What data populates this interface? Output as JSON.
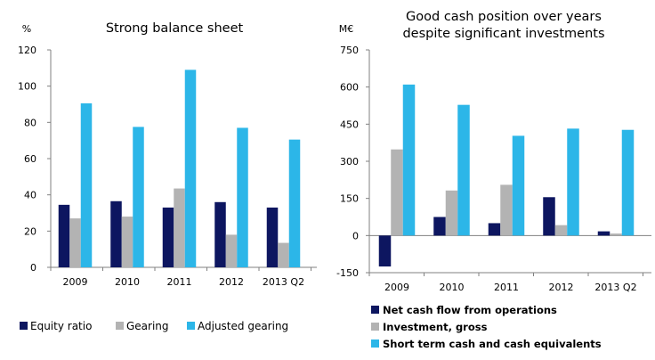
{
  "colors": {
    "navy": "#0d1660",
    "gray": "#b3b3b3",
    "cyan": "#2cb6e8"
  },
  "chart_data": [
    {
      "type": "bar",
      "title": "Strong balance sheet",
      "ylabel": "%",
      "ylim": [
        0,
        120
      ],
      "yticks": [
        0,
        20,
        40,
        60,
        80,
        100,
        120
      ],
      "categories": [
        "2009",
        "2010",
        "2011",
        "2012",
        "2013 Q2"
      ],
      "series": [
        {
          "name": "Equity ratio",
          "color": "#0d1660",
          "values": [
            34.5,
            36.5,
            33,
            36,
            33
          ]
        },
        {
          "name": "Gearing",
          "color": "#b3b3b3",
          "values": [
            27,
            28,
            43.5,
            18,
            13.5
          ]
        },
        {
          "name": "Adjusted gearing",
          "color": "#2cb6e8",
          "values": [
            90.5,
            77.5,
            109,
            77,
            70.5
          ]
        }
      ]
    },
    {
      "type": "bar",
      "title_lines": [
        "Good cash position over years",
        "despite significant investments"
      ],
      "ylabel": "M€",
      "ylim": [
        -150,
        750
      ],
      "yticks": [
        -150,
        0,
        150,
        300,
        450,
        600,
        750
      ],
      "categories": [
        "2009",
        "2010",
        "2011",
        "2012",
        "2013 Q2"
      ],
      "series": [
        {
          "name": "Net cash flow from operations",
          "color": "#0d1660",
          "values": [
            -125,
            75,
            50,
            155,
            17
          ]
        },
        {
          "name": "Investment, gross",
          "color": "#b3b3b3",
          "values": [
            348,
            182,
            205,
            42,
            8
          ]
        },
        {
          "name": "Short term cash and cash equivalents",
          "color": "#2cb6e8",
          "values": [
            610,
            528,
            403,
            432,
            427
          ]
        }
      ]
    }
  ]
}
